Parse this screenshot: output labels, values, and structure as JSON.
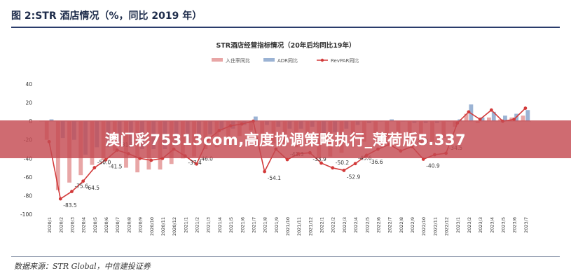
{
  "header": {
    "title": "图 2:STR 酒店情况（%，同比 2019 年）"
  },
  "footer": {
    "source": "数据来源：STR Global，中信建投证券"
  },
  "banner": {
    "text": "澳门彩75313com,高度协调策略执行_薄荷版5.337"
  },
  "chart_data": {
    "type": "bar",
    "title": "STR酒店经营指标情况（20年后均同比19年）",
    "categories": [
      "2020/1",
      "2020/2",
      "2020/3",
      "2020/4",
      "2020/5",
      "2020/6",
      "2020/7",
      "2020/8",
      "2020/9",
      "2020/10",
      "2020/11",
      "2020/12",
      "2021/1",
      "2021/2",
      "2021/3",
      "2021/4",
      "2021/5",
      "2021/6",
      "2021/7",
      "2021/8",
      "2021/9",
      "2021/10",
      "2021/11",
      "2021/12",
      "2022/1",
      "2022/2",
      "2022/3",
      "2022/4",
      "2022/5",
      "2022/6",
      "2022/7",
      "2022/8",
      "2022/9",
      "2022/10",
      "2022/11",
      "2022/12",
      "2023/1",
      "2023/2",
      "2023/3",
      "2023/4",
      "2023/5",
      "2023/6",
      "2023/7"
    ],
    "ylim": [
      -100,
      40
    ],
    "yticks": [
      40,
      20,
      0,
      -20,
      -40,
      -60,
      -80,
      -100
    ],
    "series": [
      {
        "name": "入住率同比",
        "kind": "bar",
        "color": "#e8a6a6",
        "values": [
          -20,
          -74,
          -66,
          -58,
          -47,
          -42,
          -32,
          -50,
          -55,
          -52,
          -52,
          -46,
          -40,
          -38,
          -30,
          -28,
          -24,
          -16,
          -10,
          -22,
          -24,
          -27,
          -28,
          -25,
          -40,
          -38,
          -34,
          -28,
          -22,
          -20,
          -18,
          -22,
          -26,
          -24,
          -22,
          -18,
          -6,
          8,
          -2,
          4,
          2,
          4,
          6
        ]
      },
      {
        "name": "ADR同比",
        "kind": "bar",
        "color": "#9bb3d4",
        "values": [
          2,
          -18,
          -20,
          -36,
          -28,
          -28,
          -24,
          -28,
          -30,
          -30,
          -30,
          -26,
          -22,
          -20,
          -14,
          -10,
          -8,
          -4,
          5,
          -4,
          -6,
          -8,
          -8,
          -6,
          -14,
          -12,
          -8,
          -4,
          -2,
          0,
          2,
          0,
          -2,
          -2,
          -2,
          0,
          2,
          18,
          4,
          10,
          6,
          8,
          12
        ]
      },
      {
        "name": "RevPAR同比",
        "kind": "line",
        "color": "#d23a3a",
        "values": [
          -22,
          -83.5,
          -75.6,
          -64.5,
          -50.0,
          -41.5,
          -31.1,
          -35,
          -40,
          -42,
          -40,
          -30,
          -37.4,
          -46.0,
          -20,
          -10,
          -5,
          -3,
          0,
          -54.1,
          -30,
          -41.3,
          -35,
          -33.9,
          -45,
          -50.2,
          -52.9,
          -45.6,
          -36.6,
          -30,
          -25,
          -32,
          -27.3,
          -40.9,
          -36,
          -34.5,
          -2,
          10,
          2,
          12,
          0,
          2,
          14
        ]
      }
    ],
    "data_labels": [
      {
        "series": 2,
        "index": 1,
        "text": "-83.5"
      },
      {
        "series": 2,
        "index": 2,
        "text": "-75.6"
      },
      {
        "series": 2,
        "index": 3,
        "text": "-64.5"
      },
      {
        "series": 2,
        "index": 4,
        "text": "-50.0"
      },
      {
        "series": 2,
        "index": 5,
        "text": "-41.5"
      },
      {
        "series": 2,
        "index": 6,
        "text": "-31.1"
      },
      {
        "series": 2,
        "index": 12,
        "text": "-37.4"
      },
      {
        "series": 2,
        "index": 13,
        "text": "-46.0"
      },
      {
        "series": 2,
        "index": 19,
        "text": "-54.1"
      },
      {
        "series": 2,
        "index": 21,
        "text": "-41.3"
      },
      {
        "series": 2,
        "index": 23,
        "text": "-33.9"
      },
      {
        "series": 2,
        "index": 25,
        "text": "-50.2"
      },
      {
        "series": 2,
        "index": 26,
        "text": "-52.9"
      },
      {
        "series": 2,
        "index": 27,
        "text": "-45.6"
      },
      {
        "series": 2,
        "index": 28,
        "text": "-36.6"
      },
      {
        "series": 2,
        "index": 32,
        "text": "-27.3"
      },
      {
        "series": 2,
        "index": 33,
        "text": "-40.9"
      },
      {
        "series": 2,
        "index": 35,
        "text": "-34.5"
      }
    ],
    "legend_position": "top-center",
    "grid": false
  }
}
